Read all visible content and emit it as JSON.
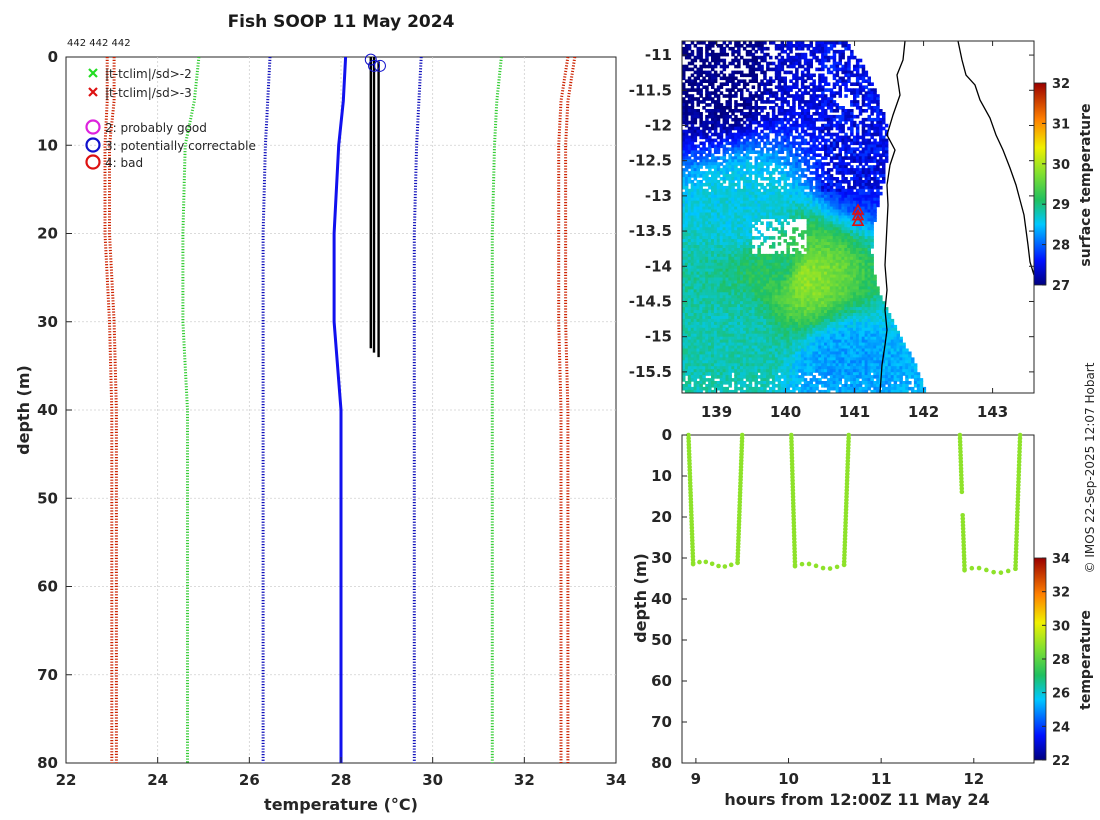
{
  "title": "Fish SOOP 11 May 2024",
  "counts_label": "442 442 442",
  "credit": "© IMOS 22-Sep-2025 12:07 Hobart",
  "legend": {
    "items": [
      {
        "label": "|t-tclim|/sd>-2",
        "marker": "x",
        "color": "#22dd22"
      },
      {
        "label": "|t-tclim|/sd>-3",
        "marker": "x",
        "color": "#dd1111"
      },
      {
        "label": "2: probably good",
        "marker": "circle",
        "color": "#dd22dd"
      },
      {
        "label": "3: potentially correctable",
        "marker": "circle",
        "color": "#1111cc"
      },
      {
        "label": "4: bad",
        "marker": "circle",
        "color": "#dd1111"
      }
    ]
  },
  "chart_data": [
    {
      "type": "line",
      "name": "profile",
      "xlabel": "temperature (°C)",
      "ylabel": "depth (m)",
      "xlim": [
        22,
        34
      ],
      "ylim": [
        80,
        0
      ],
      "xticks": [
        22,
        24,
        26,
        28,
        30,
        32,
        34
      ],
      "yticks": [
        0,
        10,
        20,
        30,
        40,
        50,
        60,
        70,
        80
      ],
      "grid": true,
      "series": [
        {
          "name": "clim -3sd a",
          "style": "dotted",
          "color": "#cc2200",
          "depth": [
            0,
            5,
            10,
            20,
            30,
            40,
            50,
            60,
            70,
            80
          ],
          "temp": [
            22.9,
            22.9,
            22.85,
            22.85,
            22.95,
            23.0,
            23.0,
            23.0,
            23.0,
            23.0
          ]
        },
        {
          "name": "clim -3sd b",
          "style": "dotted",
          "color": "#cc2200",
          "depth": [
            0,
            5,
            10,
            20,
            30,
            40,
            50,
            60,
            70,
            80
          ],
          "temp": [
            23.05,
            23.05,
            22.95,
            22.95,
            23.05,
            23.1,
            23.1,
            23.1,
            23.1,
            23.1
          ]
        },
        {
          "name": "clim -2sd",
          "style": "dotted",
          "color": "#33cc33",
          "depth": [
            0,
            5,
            10,
            20,
            30,
            40,
            50,
            60,
            70,
            80
          ],
          "temp": [
            24.9,
            24.8,
            24.6,
            24.55,
            24.55,
            24.65,
            24.65,
            24.65,
            24.65,
            24.65
          ]
        },
        {
          "name": "clim -1sd",
          "style": "dotted",
          "color": "#1111bb",
          "depth": [
            0,
            5,
            10,
            20,
            30,
            40,
            50,
            60,
            70,
            80
          ],
          "temp": [
            26.45,
            26.4,
            26.35,
            26.3,
            26.3,
            26.3,
            26.3,
            26.3,
            26.3,
            26.3
          ]
        },
        {
          "name": "climatology mean",
          "style": "solid",
          "color": "#1111ee",
          "depth": [
            0,
            5,
            10,
            20,
            30,
            40,
            50,
            60,
            70,
            80
          ],
          "temp": [
            28.1,
            28.05,
            27.95,
            27.85,
            27.85,
            28.0,
            28.0,
            28.0,
            28.0,
            28.0
          ]
        },
        {
          "name": "clim +1sd",
          "style": "dotted",
          "color": "#1111bb",
          "depth": [
            0,
            5,
            10,
            20,
            30,
            40,
            50,
            60,
            70,
            80
          ],
          "temp": [
            29.75,
            29.7,
            29.65,
            29.6,
            29.6,
            29.6,
            29.6,
            29.6,
            29.6,
            29.6
          ]
        },
        {
          "name": "clim +2sd",
          "style": "dotted",
          "color": "#33cc33",
          "depth": [
            0,
            5,
            10,
            20,
            30,
            40,
            50,
            60,
            70,
            80
          ],
          "temp": [
            31.5,
            31.4,
            31.35,
            31.3,
            31.3,
            31.3,
            31.3,
            31.3,
            31.3,
            31.3
          ]
        },
        {
          "name": "clim +3sd a",
          "style": "dotted",
          "color": "#cc2200",
          "depth": [
            0,
            5,
            10,
            20,
            30,
            40,
            50,
            60,
            70,
            80
          ],
          "temp": [
            32.95,
            32.8,
            32.75,
            32.75,
            32.75,
            32.8,
            32.8,
            32.8,
            32.8,
            32.8
          ]
        },
        {
          "name": "clim +3sd b",
          "style": "dotted",
          "color": "#cc2200",
          "depth": [
            0,
            5,
            10,
            20,
            30,
            40,
            50,
            60,
            70,
            80
          ],
          "temp": [
            33.1,
            32.95,
            32.9,
            32.9,
            32.9,
            32.95,
            32.95,
            32.95,
            32.95,
            32.95
          ]
        },
        {
          "name": "profile 1",
          "style": "solid",
          "color": "#000000",
          "depth": [
            0,
            10,
            20,
            30,
            33
          ],
          "temp": [
            28.65,
            28.65,
            28.65,
            28.65,
            28.65
          ]
        },
        {
          "name": "profile 2",
          "style": "solid",
          "color": "#000000",
          "depth": [
            0,
            10,
            20,
            30,
            33.5
          ],
          "temp": [
            28.72,
            28.72,
            28.72,
            28.72,
            28.72
          ]
        },
        {
          "name": "profile 3",
          "style": "solid",
          "color": "#000000",
          "depth": [
            0.5,
            10,
            20,
            30,
            34
          ],
          "temp": [
            28.82,
            28.82,
            28.82,
            28.82,
            28.82
          ]
        }
      ],
      "qc_markers": [
        {
          "temp": 28.65,
          "depth": 0.3,
          "flag": 3
        },
        {
          "temp": 28.72,
          "depth": 1.0,
          "flag": 3
        },
        {
          "temp": 28.85,
          "depth": 1.0,
          "flag": 3
        }
      ]
    },
    {
      "type": "heatmap",
      "name": "map",
      "colorbar_label": "surface temperature",
      "clim": [
        27,
        32
      ],
      "colorbar_ticks": [
        27,
        28,
        29,
        30,
        31,
        32
      ],
      "xlim": [
        138.5,
        143.6
      ],
      "ylim": [
        -15.8,
        -10.8
      ],
      "xticks": [
        139,
        140,
        141,
        142,
        143
      ],
      "yticks": [
        -11,
        -11.5,
        -12,
        -12.5,
        -13,
        -13.5,
        -14,
        -14.5,
        -15,
        -15.5
      ],
      "xticklabels": [
        "139",
        "140",
        "141",
        "142",
        "143"
      ],
      "yticklabels": [
        "-11",
        "-11.5",
        "-12",
        "-12.5",
        "-13",
        "-13.5",
        "-14",
        "-14.5",
        "-15",
        "-15.5"
      ],
      "sample_sst": [
        {
          "lon": 139.0,
          "lat": -11.3,
          "sst": 27.0
        },
        {
          "lon": 140.5,
          "lat": -11.2,
          "sst": 27.4
        },
        {
          "lon": 141.0,
          "lat": -12.5,
          "sst": 27.6
        },
        {
          "lon": 139.5,
          "lat": -13.2,
          "sst": 28.6
        },
        {
          "lon": 140.0,
          "lat": -14.0,
          "sst": 29.0
        },
        {
          "lon": 140.2,
          "lat": -14.1,
          "sst": 29.9
        },
        {
          "lon": 139.3,
          "lat": -14.9,
          "sst": 28.8
        },
        {
          "lon": 140.8,
          "lat": -15.4,
          "sst": 28.3
        }
      ],
      "track_points": [
        {
          "lon": 141.05,
          "lat": -13.2
        },
        {
          "lon": 141.05,
          "lat": -13.28
        },
        {
          "lon": 141.05,
          "lat": -13.36
        }
      ]
    },
    {
      "type": "scatter",
      "name": "time-depth section",
      "xlabel": "hours from 12:00Z 11 May 24",
      "ylabel": "depth (m)",
      "colorbar_label": "temperature",
      "clim": [
        22,
        34
      ],
      "colorbar_ticks": [
        22,
        24,
        26,
        28,
        30,
        32,
        34
      ],
      "xlim": [
        8.85,
        12.65
      ],
      "ylim": [
        80,
        0
      ],
      "xticks": [
        9,
        10,
        11,
        12
      ],
      "yticks": [
        0,
        10,
        20,
        30,
        40,
        50,
        60,
        70,
        80
      ],
      "casts": [
        {
          "t_start": 8.92,
          "t_bottom": 8.97,
          "t_end": 9.45,
          "t_up": 9.5,
          "max_depth": 32.5,
          "temp": 28.8
        },
        {
          "t_start": 10.03,
          "t_bottom": 10.07,
          "t_end": 10.6,
          "t_up": 10.65,
          "max_depth": 33.0,
          "temp": 28.8
        },
        {
          "t_start": 11.85,
          "t_bottom": 11.9,
          "t_end": 12.45,
          "t_up": 12.5,
          "max_depth": 34.0,
          "temp": 28.8
        }
      ],
      "gap": {
        "cast": 2,
        "depth_from": 14,
        "depth_to": 19
      }
    }
  ]
}
